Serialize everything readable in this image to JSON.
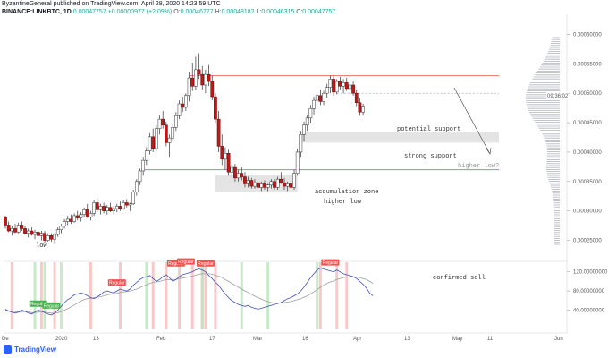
{
  "header": {
    "publisher_line": "ByzantineGeneral published on TradingView.com, April 28, 2020 14:23:59 UTC",
    "symbol": "BINANCE:LINKBTC, 1D",
    "last": "0.00047757",
    "change": "+0.00000977 (+2.09%)",
    "open_label": "O:",
    "open": "0.00046777",
    "high_label": "H:",
    "high": "0.00048182",
    "low_label": "L:",
    "low": "0.00046315",
    "close_label": "C:",
    "close": "0.00047757"
  },
  "footer": {
    "brand": "TradingView"
  },
  "price_label_box": "09:36:02",
  "chart_data": {
    "type": "candlestick",
    "price_axis_ticks": [
      "0.00060000",
      "0.00055000",
      "0.00050000",
      "0.00045000",
      "0.00040000",
      "0.00035000",
      "0.00030000",
      "0.00025000"
    ],
    "price_range": [
      0.000225,
      0.000625
    ],
    "x_tick_labels": [
      "De",
      "2020",
      "13",
      "Feb",
      "17",
      "Mar",
      "16",
      "Apr",
      "13",
      "May",
      "11",
      "Jun"
    ],
    "candles_ohlc": [
      [
        0.00029,
        0.000292,
        0.00027,
        0.000276
      ],
      [
        0.000276,
        0.000282,
        0.000264,
        0.000266
      ],
      [
        0.000266,
        0.000275,
        0.000258,
        0.00027
      ],
      [
        0.00027,
        0.000278,
        0.000262,
        0.000264
      ],
      [
        0.000264,
        0.00028,
        0.000262,
        0.000276
      ],
      [
        0.000276,
        0.000282,
        0.000266,
        0.00027
      ],
      [
        0.00027,
        0.000274,
        0.00026,
        0.000262
      ],
      [
        0.000262,
        0.00027,
        0.000255,
        0.000266
      ],
      [
        0.000266,
        0.000272,
        0.000258,
        0.00026
      ],
      [
        0.00026,
        0.000268,
        0.000252,
        0.000264
      ],
      [
        0.000264,
        0.00027,
        0.000256,
        0.000258
      ],
      [
        0.000258,
        0.000266,
        0.00025,
        0.000262
      ],
      [
        0.000262,
        0.000266,
        0.000246,
        0.00025
      ],
      [
        0.00025,
        0.000262,
        0.000248,
        0.000258
      ],
      [
        0.000258,
        0.000262,
        0.000248,
        0.000252
      ],
      [
        0.000252,
        0.000262,
        0.000244,
        0.00026
      ],
      [
        0.00026,
        0.000272,
        0.000256,
        0.000268
      ],
      [
        0.000268,
        0.000278,
        0.000262,
        0.000274
      ],
      [
        0.000274,
        0.000286,
        0.00027,
        0.000282
      ],
      [
        0.000282,
        0.000292,
        0.000276,
        0.000286
      ],
      [
        0.000286,
        0.000294,
        0.000278,
        0.000282
      ],
      [
        0.000282,
        0.000296,
        0.00028,
        0.000292
      ],
      [
        0.000292,
        0.0003,
        0.000284,
        0.000288
      ],
      [
        0.000288,
        0.000298,
        0.000282,
        0.000294
      ],
      [
        0.000294,
        0.000306,
        0.00029,
        0.000302
      ],
      [
        0.000302,
        0.000312,
        0.000288,
        0.00029
      ],
      [
        0.00029,
        0.0003,
        0.000284,
        0.000296
      ],
      [
        0.000296,
        0.000318,
        0.000292,
        0.000314
      ],
      [
        0.000314,
        0.000322,
        0.000298,
        0.000302
      ],
      [
        0.000302,
        0.000312,
        0.000294,
        0.000308
      ],
      [
        0.000308,
        0.000314,
        0.000296,
        0.0003
      ],
      [
        0.0003,
        0.00031,
        0.000294,
        0.000306
      ],
      [
        0.000306,
        0.000314,
        0.000298,
        0.0003
      ],
      [
        0.0003,
        0.000308,
        0.000294,
        0.000304
      ],
      [
        0.000304,
        0.000312,
        0.000298,
        0.000308
      ],
      [
        0.000308,
        0.000316,
        0.0003,
        0.000304
      ],
      [
        0.000304,
        0.000318,
        0.000302,
        0.000314
      ],
      [
        0.000314,
        0.00032,
        0.000306,
        0.00031
      ],
      [
        0.00031,
        0.000314,
        0.0003,
        0.000312
      ],
      [
        0.000312,
        0.000336,
        0.00031,
        0.000332
      ],
      [
        0.000332,
        0.000354,
        0.000326,
        0.00035
      ],
      [
        0.00035,
        0.000372,
        0.000344,
        0.000368
      ],
      [
        0.000368,
        0.000392,
        0.00036,
        0.000386
      ],
      [
        0.000386,
        0.000408,
        0.000378,
        0.000402
      ],
      [
        0.000402,
        0.000432,
        0.000396,
        0.000426
      ],
      [
        0.000426,
        0.00044,
        0.0004,
        0.000406
      ],
      [
        0.000406,
        0.000446,
        0.000402,
        0.00044
      ],
      [
        0.00044,
        0.000462,
        0.00043,
        0.000456
      ],
      [
        0.000456,
        0.00047,
        0.00044,
        0.000446
      ],
      [
        0.000446,
        0.000452,
        0.00041,
        0.000416
      ],
      [
        0.000416,
        0.00043,
        0.000392,
        0.000424
      ],
      [
        0.000424,
        0.000448,
        0.000418,
        0.000442
      ],
      [
        0.000442,
        0.000468,
        0.000436,
        0.000462
      ],
      [
        0.000462,
        0.000488,
        0.000456,
        0.000482
      ],
      [
        0.000482,
        0.000494,
        0.000468,
        0.000476
      ],
      [
        0.000476,
        0.0005,
        0.00047,
        0.000496
      ],
      [
        0.000496,
        0.000536,
        0.000486,
        0.000526
      ],
      [
        0.000526,
        0.000552,
        0.000504,
        0.000512
      ],
      [
        0.000512,
        0.000562,
        0.000506,
        0.00054
      ],
      [
        0.00054,
        0.000568,
        0.000524,
        0.000532
      ],
      [
        0.000532,
        0.000546,
        0.000506,
        0.000514
      ],
      [
        0.000514,
        0.00054,
        0.0005,
        0.000532
      ],
      [
        0.000532,
        0.000548,
        0.000512,
        0.00052
      ],
      [
        0.00052,
        0.00053,
        0.000488,
        0.000494
      ],
      [
        0.000494,
        0.0005,
        0.00045,
        0.000456
      ],
      [
        0.000456,
        0.00047,
        0.0004,
        0.00041
      ],
      [
        0.00041,
        0.00043,
        0.000378,
        0.000388
      ],
      [
        0.000388,
        0.000408,
        0.00037,
        0.000398
      ],
      [
        0.000398,
        0.000404,
        0.00036,
        0.000366
      ],
      [
        0.000366,
        0.00038,
        0.000356,
        0.000374
      ],
      [
        0.000374,
        0.00038,
        0.00035,
        0.000356
      ],
      [
        0.000356,
        0.00037,
        0.00035,
        0.000364
      ],
      [
        0.000364,
        0.000374,
        0.000352,
        0.000358
      ],
      [
        0.000358,
        0.000366,
        0.00034,
        0.000346
      ],
      [
        0.000346,
        0.000358,
        0.00034,
        0.000352
      ],
      [
        0.000352,
        0.000356,
        0.000338,
        0.000342
      ],
      [
        0.000342,
        0.000354,
        0.000338,
        0.000348
      ],
      [
        0.000348,
        0.000354,
        0.000336,
        0.00034
      ],
      [
        0.00034,
        0.00035,
        0.000334,
        0.000346
      ],
      [
        0.000346,
        0.000352,
        0.000336,
        0.00034
      ],
      [
        0.00034,
        0.000346,
        0.000334,
        0.000344
      ],
      [
        0.000344,
        0.000354,
        0.000338,
        0.00035
      ],
      [
        0.00035,
        0.000354,
        0.000336,
        0.00034
      ],
      [
        0.00034,
        0.000358,
        0.000336,
        0.000354
      ],
      [
        0.000354,
        0.000366,
        0.000346,
        0.000348
      ],
      [
        0.000348,
        0.000356,
        0.000336,
        0.000342
      ],
      [
        0.000342,
        0.00035,
        0.000334,
        0.000346
      ],
      [
        0.000346,
        0.000352,
        0.000334,
        0.00034
      ],
      [
        0.00034,
        0.00037,
        0.000336,
        0.000364
      ],
      [
        0.000364,
        0.000406,
        0.00036,
        0.0004
      ],
      [
        0.0004,
        0.000436,
        0.000392,
        0.00043
      ],
      [
        0.00043,
        0.000452,
        0.000418,
        0.000446
      ],
      [
        0.000446,
        0.000464,
        0.000436,
        0.000458
      ],
      [
        0.000458,
        0.00048,
        0.00045,
        0.000474
      ],
      [
        0.000474,
        0.000494,
        0.000464,
        0.000488
      ],
      [
        0.000488,
        0.0005,
        0.000476,
        0.000496
      ],
      [
        0.000496,
        0.000506,
        0.00048,
        0.000486
      ],
      [
        0.000486,
        0.000504,
        0.00048,
        0.0005
      ],
      [
        0.0005,
        0.000516,
        0.000492,
        0.00051
      ],
      [
        0.00051,
        0.00053,
        0.0005,
        0.000524
      ],
      [
        0.000524,
        0.00053,
        0.000496,
        0.000502
      ],
      [
        0.000502,
        0.000524,
        0.000498,
        0.00052
      ],
      [
        0.00052,
        0.000528,
        0.000506,
        0.000512
      ],
      [
        0.000512,
        0.000524,
        0.0005,
        0.000518
      ],
      [
        0.000518,
        0.000526,
        0.000504,
        0.000508
      ],
      [
        0.000508,
        0.00052,
        0.0005,
        0.000514
      ],
      [
        0.000514,
        0.00052,
        0.000496,
        0.0005
      ],
      [
        0.0005,
        0.000506,
        0.000478,
        0.000484
      ],
      [
        0.000484,
        0.000492,
        0.000462,
        0.000468
      ],
      [
        0.000468,
        0.000482,
        0.000462,
        0.000478
      ]
    ],
    "horizontal_levels": [
      {
        "price": 0.00053,
        "color": "#ef5350"
      },
      {
        "price": 0.0005,
        "color": "#9e9e9e",
        "dashed": true
      },
      {
        "price": 0.00037,
        "color": "#4caf50"
      }
    ],
    "zones": [
      {
        "label": "potential support",
        "top": 0.000434,
        "bottom": 0.000416
      },
      {
        "label": "accumulation zone",
        "top": 0.000362,
        "bottom": 0.000332
      }
    ],
    "annotations": {
      "low": "low",
      "potential_support": "potential support",
      "strong_support": "strong support",
      "accumulation_zone": "accumulation zone",
      "higher_low": "higher low",
      "higher_low_q": "higher low?",
      "confirmed_sell": "confirmed sell"
    },
    "oscillator": {
      "ticks": [
        "120.00000000",
        "80.00000000",
        "40.00000000"
      ],
      "range": [
        0,
        140
      ],
      "fast": [
        42,
        38,
        36,
        34,
        36,
        40,
        38,
        34,
        32,
        36,
        40,
        38,
        35,
        32,
        30,
        34,
        40,
        48,
        56,
        62,
        66,
        72,
        74,
        76,
        74,
        70,
        66,
        64,
        68,
        72,
        78,
        80,
        78,
        76,
        80,
        84,
        82,
        80,
        84,
        92,
        98,
        104,
        108,
        110,
        112,
        106,
        100,
        104,
        110,
        114,
        108,
        100,
        104,
        110,
        114,
        116,
        118,
        120,
        124,
        126,
        124,
        120,
        112,
        106,
        98,
        92,
        82,
        74,
        66,
        60,
        56,
        52,
        50,
        48,
        50,
        46,
        44,
        42,
        44,
        46,
        48,
        50,
        52,
        54,
        56,
        60,
        64,
        66,
        70,
        74,
        80,
        88,
        98,
        108,
        116,
        124,
        128,
        126,
        124,
        122,
        120,
        124,
        120,
        116,
        114,
        112,
        110,
        106,
        100,
        94,
        86,
        76,
        70
      ],
      "slow": [
        40,
        39,
        38,
        37,
        36,
        37,
        37,
        36,
        35,
        35,
        36,
        36,
        36,
        35,
        34,
        34,
        35,
        37,
        40,
        43,
        47,
        51,
        55,
        59,
        62,
        64,
        65,
        66,
        67,
        68,
        70,
        72,
        73,
        74,
        75,
        77,
        78,
        79,
        80,
        82,
        84,
        87,
        90,
        93,
        96,
        98,
        99,
        100,
        102,
        104,
        104,
        104,
        104,
        106,
        107,
        108,
        110,
        111,
        113,
        115,
        116,
        116,
        116,
        115,
        113,
        111,
        108,
        104,
        100,
        96,
        92,
        88,
        84,
        80,
        77,
        73,
        69,
        66,
        63,
        60,
        58,
        56,
        55,
        55,
        55,
        56,
        57,
        58,
        60,
        62,
        64,
        67,
        70,
        74,
        78,
        83,
        88,
        92,
        96,
        99,
        101,
        104,
        106,
        108,
        109,
        110,
        110,
        109,
        108,
        106,
        104,
        100,
        96
      ],
      "badge_text": "Regular",
      "badges": [
        {
          "idx": 10,
          "color": "#4caf50",
          "value": 36
        },
        {
          "idx": 14,
          "color": "#4caf50",
          "value": 32
        },
        {
          "idx": 34,
          "color": "#ef5350",
          "value": 80
        },
        {
          "idx": 52,
          "color": "#ef5350",
          "value": 120
        },
        {
          "idx": 55,
          "color": "#ef5350",
          "value": 124
        },
        {
          "idx": 61,
          "color": "#ef5350",
          "value": 120
        },
        {
          "idx": 99,
          "color": "#ef5350",
          "value": 122
        }
      ],
      "red_bands": [
        2,
        11,
        15,
        26,
        35,
        45,
        49,
        53,
        57,
        60,
        61,
        64,
        96,
        101,
        104
      ],
      "green_bands": [
        9,
        12,
        17,
        43,
        60,
        72,
        80,
        95
      ]
    }
  }
}
